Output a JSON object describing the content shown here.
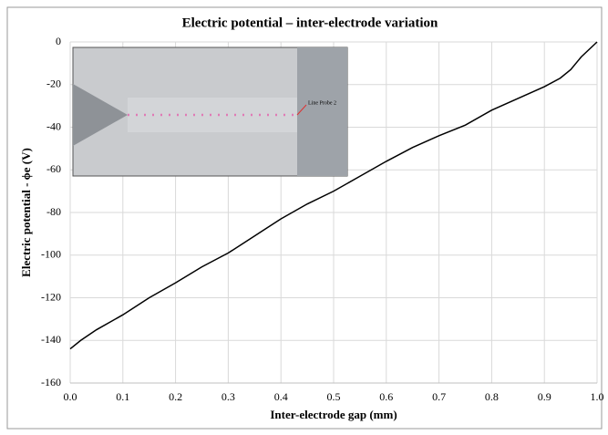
{
  "chart_data": {
    "type": "line",
    "title": "Electric potential – inter-electrode variation",
    "xlabel": "Inter-electrode gap (mm)",
    "ylabel": "Electric potential - ϕe (V)",
    "annotations": [
      "Line Probe 2"
    ],
    "x": [
      0.0,
      0.02,
      0.05,
      0.1,
      0.15,
      0.2,
      0.25,
      0.3,
      0.35,
      0.4,
      0.45,
      0.5,
      0.55,
      0.6,
      0.65,
      0.7,
      0.75,
      0.8,
      0.85,
      0.9,
      0.93,
      0.95,
      0.97,
      1.0
    ],
    "series": [
      {
        "color": "#000000",
        "values": [
          -144,
          -140,
          -135,
          -128,
          -120,
          -113,
          -105.5,
          -99,
          -91,
          -83,
          -76,
          -70,
          -63,
          -56,
          -49.5,
          -44,
          -39,
          -32,
          -26.5,
          -21,
          -17,
          -13,
          -7,
          0
        ]
      }
    ],
    "xlim": [
      0,
      1
    ],
    "ylim": [
      -160,
      0
    ],
    "xticks": [
      {
        "value": 0,
        "label": "0.0"
      },
      0.1,
      0.2,
      0.3,
      0.4,
      0.5,
      0.6,
      0.7,
      0.8,
      0.9,
      {
        "value": 1,
        "label": "1.0"
      }
    ],
    "yticks": [
      0,
      -20,
      -40,
      -60,
      -80,
      -100,
      -120,
      -140,
      -160
    ],
    "grid": true
  }
}
